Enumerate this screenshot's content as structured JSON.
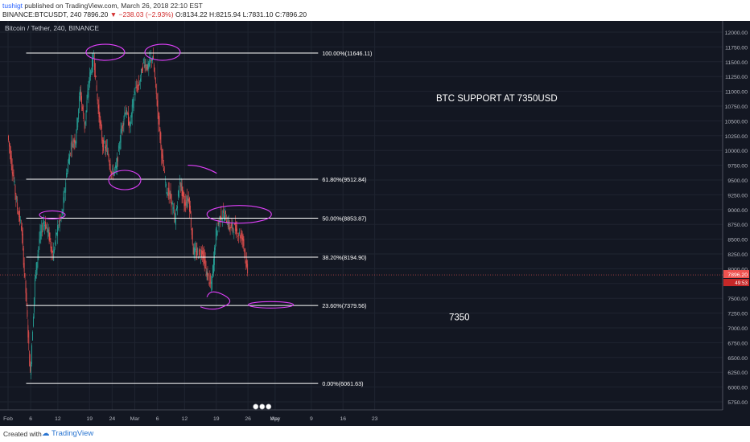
{
  "publisher": {
    "user": "tushigt",
    "rest": " published on TradingView.com, March 26, 2018 22:10 EST"
  },
  "ohlc": {
    "symbol": "BINANCE:BTCUSDT, 240",
    "last": "7896.20",
    "change": "▼ −238.03 (−2.93%)",
    "open_label": "O:",
    "open": "8134.22",
    "high_label": "H:",
    "high": "8215.94",
    "low_label": "L:",
    "low": "7831.10",
    "close_label": "C:",
    "close": "7896.20"
  },
  "footer": {
    "created_with": "Created with",
    "brand": "TradingView"
  },
  "colors": {
    "bg": "#131722",
    "up": "#26a69a",
    "down": "#ef5350",
    "annotation": "#e040fb",
    "fib": "#ffffff",
    "price_tag": "#ef5350"
  },
  "chart_data": {
    "type": "candlestick",
    "legend": "Bitcoin / Tether, 240, BINANCE",
    "ylim": [
      5750,
      12000
    ],
    "y_ticks": [
      "12000.00",
      "11750.00",
      "11500.00",
      "11250.00",
      "11000.00",
      "10750.00",
      "10500.00",
      "10250.00",
      "10000.00",
      "9750.00",
      "9500.00",
      "9250.00",
      "9000.00",
      "8750.00",
      "8500.00",
      "8250.00",
      "8000.00",
      "7750.00",
      "7500.00",
      "7250.00",
      "7000.00",
      "6750.00",
      "6500.00",
      "6250.00",
      "6000.00",
      "5750.00"
    ],
    "x_ticks": [
      "Feb",
      "6",
      "12",
      "19",
      "24",
      "Mar",
      "6",
      "12",
      "19",
      "26",
      "Apr",
      "9",
      "16",
      "23",
      "May"
    ],
    "fib_levels": [
      {
        "label": "100.00%(11646.11)",
        "value": 11646.11
      },
      {
        "label": "61.80%(9512.84)",
        "value": 9512.84
      },
      {
        "label": "50.00%(8853.87)",
        "value": 8853.87
      },
      {
        "label": "38.20%(8194.90)",
        "value": 8194.9
      },
      {
        "label": "23.60%(7379.56)",
        "value": 7379.56
      },
      {
        "label": "0.00%(6061.63)",
        "value": 6061.63
      }
    ],
    "last_price": "7896.20",
    "countdown": "49:53",
    "price_path": [
      [
        "Feb 1",
        10250
      ],
      [
        "Feb 2",
        9700
      ],
      [
        "Feb 3",
        9100
      ],
      [
        "Feb 4",
        8700
      ],
      [
        "Feb 5",
        7600
      ],
      [
        "Feb 6",
        6200
      ],
      [
        "Feb 7",
        7800
      ],
      [
        "Feb 8",
        8500
      ],
      [
        "Feb 9",
        8800
      ],
      [
        "Feb 10",
        8600
      ],
      [
        "Feb 11",
        8200
      ],
      [
        "Feb 12",
        8700
      ],
      [
        "Feb 13",
        8900
      ],
      [
        "Feb 14",
        9600
      ],
      [
        "Feb 15",
        10100
      ],
      [
        "Feb 16",
        10200
      ],
      [
        "Feb 17",
        11000
      ],
      [
        "Feb 18",
        10400
      ],
      [
        "Feb 19",
        11200
      ],
      [
        "Feb 20",
        11600
      ],
      [
        "Feb 21",
        10700
      ],
      [
        "Feb 22",
        10100
      ],
      [
        "Feb 23",
        10000
      ],
      [
        "Feb 24",
        9600
      ],
      [
        "Feb 25",
        9700
      ],
      [
        "Feb 26",
        10300
      ],
      [
        "Feb 27",
        10700
      ],
      [
        "Feb 28",
        10400
      ],
      [
        "Mar 1",
        11000
      ],
      [
        "Mar 2",
        11100
      ],
      [
        "Mar 3",
        11500
      ],
      [
        "Mar 4",
        11400
      ],
      [
        "Mar 5",
        11600
      ],
      [
        "Mar 6",
        10800
      ],
      [
        "Mar 7",
        9950
      ],
      [
        "Mar 8",
        9350
      ],
      [
        "Mar 9",
        9200
      ],
      [
        "Mar 10",
        8800
      ],
      [
        "Mar 11",
        9500
      ],
      [
        "Mar 12",
        9100
      ],
      [
        "Mar 13",
        9200
      ],
      [
        "Mar 14",
        8300
      ],
      [
        "Mar 15",
        8250
      ],
      [
        "Mar 16",
        8300
      ],
      [
        "Mar 17",
        7900
      ],
      [
        "Mar 18",
        7700
      ],
      [
        "Mar 19",
        8600
      ],
      [
        "Mar 20",
        8900
      ],
      [
        "Mar 21",
        8900
      ],
      [
        "Mar 22",
        8700
      ],
      [
        "Mar 23",
        8700
      ],
      [
        "Mar 24",
        8600
      ],
      [
        "Mar 25",
        8500
      ],
      [
        "Mar 26",
        7896
      ]
    ],
    "annotations": {
      "title": "BTC SUPPORT AT 7350USD",
      "level": "7350"
    }
  }
}
